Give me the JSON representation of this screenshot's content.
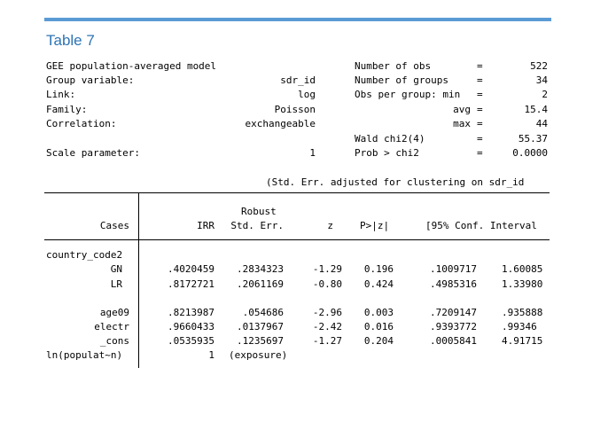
{
  "title": "Table 7",
  "header_left": [
    {
      "label": "GEE population-averaged model",
      "value": ""
    },
    {
      "label": "Group variable:",
      "value": "sdr_id"
    },
    {
      "label": "Link:",
      "value": "log"
    },
    {
      "label": "Family:",
      "value": "Poisson"
    },
    {
      "label": "Correlation:",
      "value": "exchangeable"
    },
    {
      "label": "Scale parameter:",
      "value": "1"
    }
  ],
  "header_right": [
    {
      "label": "Number of obs",
      "eq": "=",
      "value": "522"
    },
    {
      "label": "Number of groups",
      "eq": "=",
      "value": "34"
    },
    {
      "label": "Obs per group: min",
      "eq": "=",
      "value": "2"
    },
    {
      "label": "avg",
      "eq": "=",
      "value": "15.4"
    },
    {
      "label": "max",
      "eq": "=",
      "value": "44"
    },
    {
      "label": "Wald chi2(4)",
      "eq": "=",
      "value": "55.37"
    },
    {
      "label": "Prob > chi2",
      "eq": "=",
      "value": "0.0000"
    }
  ],
  "se_note": "(Std. Err. adjusted for clustering on sdr_id",
  "columns": {
    "cases": "Cases",
    "irr": "IRR",
    "robust": "Robust",
    "stderr": "Std. Err.",
    "z": "z",
    "p": "P>|z|",
    "ci": "[95% Conf. Interval"
  },
  "group_label": "country_code2",
  "rows_group": [
    {
      "name": "GN",
      "irr": ".4020459",
      "se": ".2834323",
      "z": "-1.29",
      "p": "0.196",
      "lo": ".1009717",
      "hi": "1.60085"
    },
    {
      "name": "LR",
      "irr": ".8172721",
      "se": ".2061169",
      "z": "-0.80",
      "p": "0.424",
      "lo": ".4985316",
      "hi": "1.33980"
    }
  ],
  "rows_main": [
    {
      "name": "age09",
      "irr": ".8213987",
      "se": ".054686",
      "z": "-2.96",
      "p": "0.003",
      "lo": ".7209147",
      "hi": ".935888"
    },
    {
      "name": "electr",
      "irr": ".9660433",
      "se": ".0137967",
      "z": "-2.42",
      "p": "0.016",
      "lo": ".9393772",
      "hi": ".99346"
    },
    {
      "name": "_cons",
      "irr": ".0535935",
      "se": ".1235697",
      "z": "-1.27",
      "p": "0.204",
      "lo": ".0005841",
      "hi": "4.91715"
    }
  ],
  "row_exposure": {
    "name": "ln(populat~n)",
    "irr": "1",
    "se": "(exposure)"
  }
}
